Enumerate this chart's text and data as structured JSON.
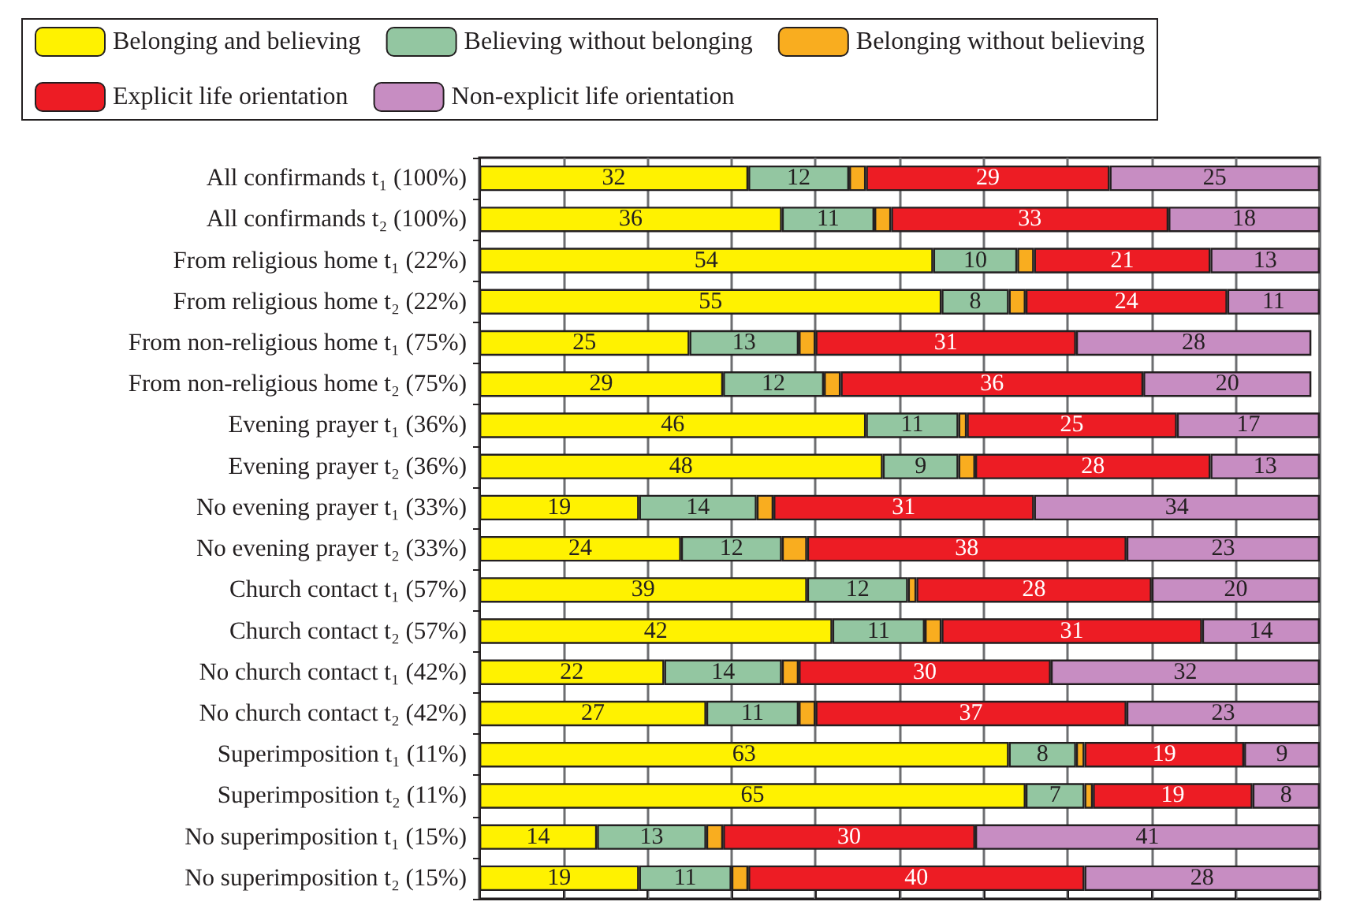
{
  "chart_data": {
    "type": "bar",
    "orientation": "horizontal",
    "stacked": true,
    "categories": [
      "All confirmands t₁ (100%)",
      "All confirmands t₂ (100%)",
      "From religious home t₁ (22%)",
      "From religious home t₂ (22%)",
      "From non-religious home t₁ (75%)",
      "From non-religious home t₂ (75%)",
      "Evening prayer t₁ (36%)",
      "Evening prayer t₂ (36%)",
      "No evening prayer t₁ (33%)",
      "No evening prayer t₂ (33%)",
      "Church contact t₁ (57%)",
      "Church contact t₂ (57%)",
      "No church contact t₁ (42%)",
      "No church contact t₂ (42%)",
      "Superimposition t₁ (11%)",
      "Superimposition t₂ (11%)",
      "No superimposition t₁ (15%)",
      "No superimposition t₂ (15%)"
    ],
    "series": [
      {
        "name": "Belonging and believing",
        "color": "#fff200",
        "values": [
          32,
          36,
          54,
          55,
          25,
          29,
          46,
          48,
          19,
          24,
          39,
          42,
          22,
          27,
          63,
          65,
          14,
          19
        ],
        "value_labels": [
          "32",
          "36",
          "54",
          "55",
          "25",
          "29",
          "46",
          "48",
          "19",
          "24",
          "39",
          "42",
          "22",
          "27",
          "63",
          "65",
          "14",
          "19"
        ]
      },
      {
        "name": "Believing without belonging",
        "color": "#93c6a1",
        "values": [
          12,
          11,
          10,
          8,
          13,
          12,
          11,
          9,
          14,
          12,
          12,
          11,
          14,
          11,
          8,
          7,
          13,
          11
        ],
        "value_labels": [
          "12",
          "11",
          "10",
          "8",
          "13",
          "12",
          "11",
          "9",
          "14",
          "12",
          "12",
          "11",
          "14",
          "11",
          "8",
          "7",
          "13",
          "11"
        ]
      },
      {
        "name": "Belonging without believing",
        "color": "#f9ad1f",
        "values": [
          2,
          2,
          2,
          2,
          2,
          2,
          1,
          2,
          2,
          3,
          1,
          2,
          2,
          2,
          1,
          1,
          2,
          2
        ]
      },
      {
        "name": "Explicit life orientation",
        "color": "#ed1c24",
        "values": [
          29,
          33,
          21,
          24,
          31,
          36,
          25,
          28,
          31,
          38,
          28,
          31,
          30,
          37,
          19,
          19,
          30,
          40
        ],
        "value_labels": [
          "29",
          "33",
          "21",
          "24",
          "31",
          "36",
          "25",
          "28",
          "31",
          "38",
          "28",
          "31",
          "30",
          "37",
          "19",
          "19",
          "30",
          "40"
        ]
      },
      {
        "name": "Non-explicit life orientation",
        "color": "#c78dc2",
        "values": [
          25,
          18,
          13,
          11,
          28,
          20,
          17,
          13,
          34,
          23,
          20,
          14,
          32,
          23,
          9,
          8,
          41,
          28
        ],
        "value_labels": [
          "25",
          "18",
          "13",
          "11",
          "28",
          "20",
          "17",
          "13",
          "34",
          "23",
          "20",
          "14",
          "32",
          "23",
          "9",
          "8",
          "41",
          "28"
        ]
      }
    ],
    "xlim": [
      0,
      100
    ],
    "xticks": [
      {
        "value": 0,
        "label": null
      },
      {
        "value": 10,
        "label": null
      },
      {
        "value": 20,
        "label": null
      },
      {
        "value": 30,
        "label": null
      },
      {
        "value": 40,
        "label": null
      },
      {
        "value": 50,
        "label": null
      },
      {
        "value": 60,
        "label": null
      },
      {
        "value": 70,
        "label": null
      },
      {
        "value": 80,
        "label": null
      },
      {
        "value": 90,
        "label": null
      },
      {
        "value": 100,
        "label": null
      }
    ],
    "tick_labels": "y",
    "grid": "x",
    "legend": "top"
  }
}
